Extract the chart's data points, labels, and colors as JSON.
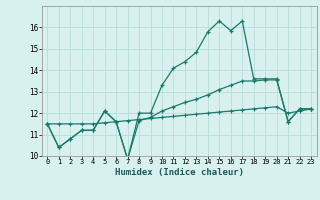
{
  "xlabel": "Humidex (Indice chaleur)",
  "x_values": [
    0,
    1,
    2,
    3,
    4,
    5,
    6,
    7,
    8,
    9,
    10,
    11,
    12,
    13,
    14,
    15,
    16,
    17,
    18,
    19,
    20,
    21,
    22,
    23
  ],
  "line1_y": [
    11.5,
    10.4,
    10.8,
    11.2,
    11.2,
    12.1,
    11.6,
    9.85,
    12.0,
    12.0,
    13.3,
    14.1,
    14.4,
    14.85,
    15.8,
    16.3,
    15.85,
    16.3,
    13.6,
    13.6,
    13.6,
    11.6,
    12.2,
    12.2
  ],
  "line2_y": [
    11.5,
    10.4,
    10.8,
    11.2,
    11.2,
    12.1,
    11.6,
    9.85,
    11.65,
    11.8,
    12.1,
    12.3,
    12.5,
    12.65,
    12.85,
    13.1,
    13.3,
    13.5,
    13.5,
    13.55,
    13.55,
    11.6,
    12.2,
    12.2
  ],
  "line3_y": [
    11.5,
    11.5,
    11.5,
    11.5,
    11.5,
    11.55,
    11.6,
    11.65,
    11.7,
    11.75,
    11.8,
    11.85,
    11.9,
    11.95,
    12.0,
    12.05,
    12.1,
    12.15,
    12.2,
    12.25,
    12.3,
    12.0,
    12.1,
    12.2
  ],
  "line_color": "#1a7a6a",
  "bg_color": "#d8f0ee",
  "grid_color": "#b8dedd",
  "ylim": [
    10,
    17
  ],
  "yticks": [
    10,
    11,
    12,
    13,
    14,
    15,
    16
  ],
  "figsize": [
    3.2,
    2.0
  ],
  "dpi": 100
}
